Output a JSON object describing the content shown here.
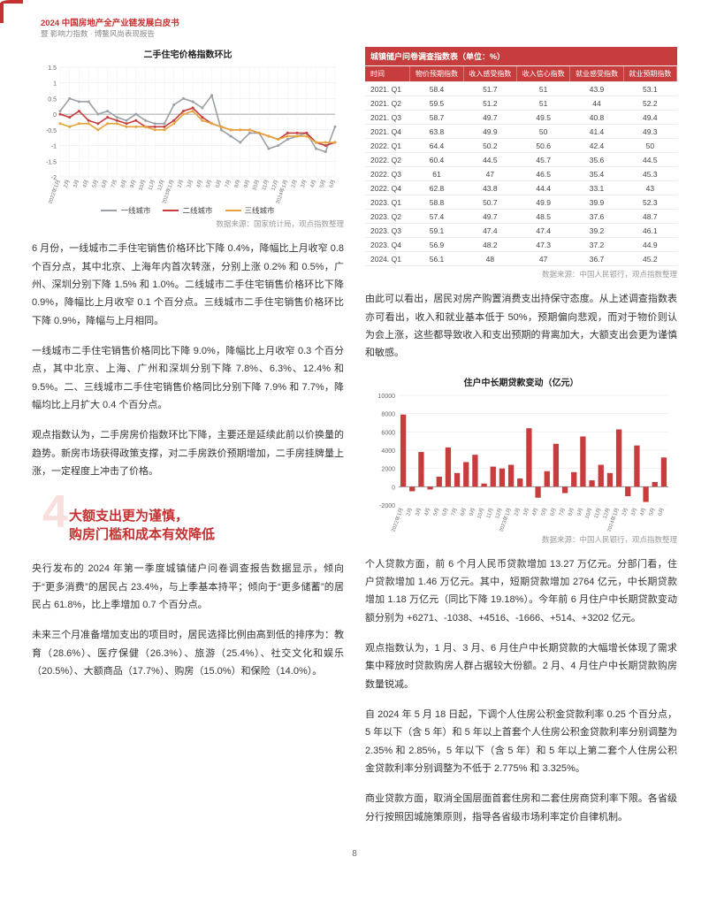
{
  "header": {
    "main": "2024 中国房地产全产业链发展白皮书",
    "sub": "暨 影响力指数 · 博鳌风尚表现报告"
  },
  "page_number": "8",
  "line_chart": {
    "type": "line",
    "title": "二手住宅价格指数环比",
    "ylim": [
      -2,
      1.5
    ],
    "ytick_step": 0.5,
    "yticks": [
      "1.5",
      "1",
      "0.5",
      "0",
      "-0.5",
      "-1",
      "-1.5",
      "-2"
    ],
    "xlabels": [
      "2022年1月",
      "2月",
      "3月",
      "4月",
      "5月",
      "6月",
      "7月",
      "8月",
      "9月",
      "10月",
      "11月",
      "12月",
      "2023年1月",
      "2月",
      "3月",
      "4月",
      "5月",
      "6月",
      "7月",
      "8月",
      "9月",
      "10月",
      "11月",
      "12月",
      "2024年1月",
      "2月",
      "3月",
      "4月",
      "5月",
      "6月"
    ],
    "series": [
      {
        "name": "一线城市",
        "color": "#9aa0a6",
        "values": [
          0.1,
          0.5,
          0.4,
          0.4,
          0.0,
          0.1,
          -0.1,
          -0.2,
          0.0,
          -0.2,
          -0.3,
          -0.3,
          0.3,
          0.5,
          0.4,
          0.2,
          0.6,
          -0.5,
          -0.7,
          -0.9,
          -0.6,
          -0.6,
          -1.1,
          -1.0,
          -0.8,
          -0.7,
          -0.6,
          -1.1,
          -1.2,
          -0.4
        ]
      },
      {
        "name": "二线城市",
        "color": "#c73c3c",
        "values": [
          0.0,
          -0.1,
          0.1,
          -0.2,
          -0.3,
          -0.1,
          -0.2,
          -0.3,
          -0.2,
          -0.4,
          -0.4,
          -0.4,
          -0.2,
          0.1,
          0.2,
          -0.1,
          -0.3,
          -0.4,
          -0.5,
          -0.5,
          -0.5,
          -0.6,
          -0.7,
          -0.8,
          -0.6,
          -0.6,
          -0.6,
          -0.9,
          -1.0,
          -0.9
        ]
      },
      {
        "name": "三线城市",
        "color": "#e8a33a",
        "values": [
          -0.3,
          -0.4,
          -0.3,
          -0.3,
          -0.5,
          -0.3,
          -0.3,
          -0.4,
          -0.4,
          -0.4,
          -0.5,
          -0.5,
          -0.3,
          0.0,
          0.1,
          -0.2,
          -0.3,
          -0.4,
          -0.5,
          -0.5,
          -0.5,
          -0.6,
          -0.7,
          -0.8,
          -0.7,
          -0.7,
          -0.7,
          -0.9,
          -0.9,
          -0.9
        ]
      }
    ],
    "source": "数据来源：国家统计局，观点指数整理",
    "axis_color": "#999",
    "grid_color": "#e5e5e5",
    "label_fontsize": 7
  },
  "survey_table": {
    "title": "城镇储户问卷调查指数表（单位：%）",
    "columns": [
      "时间",
      "物价预期指数",
      "收入感受指数",
      "收入信心指数",
      "就业感受指数",
      "就业预期指数"
    ],
    "rows": [
      [
        "2021. Q1",
        "58.4",
        "51.7",
        "51",
        "43.9",
        "53.1"
      ],
      [
        "2021. Q2",
        "59.5",
        "51.2",
        "51",
        "44",
        "52.2"
      ],
      [
        "2021. Q3",
        "58.7",
        "49.7",
        "49.5",
        "40.8",
        "49.4"
      ],
      [
        "2021. Q4",
        "63.8",
        "49.9",
        "50",
        "41.4",
        "49.3"
      ],
      [
        "2022. Q1",
        "64.4",
        "50.2",
        "50.6",
        "42.4",
        "50"
      ],
      [
        "2022. Q2",
        "60.4",
        "44.5",
        "45.7",
        "35.6",
        "44.5"
      ],
      [
        "2022. Q3",
        "61",
        "47",
        "46.5",
        "35.4",
        "45.3"
      ],
      [
        "2022. Q4",
        "62.8",
        "43.8",
        "44.4",
        "33.1",
        "43"
      ],
      [
        "2023. Q1",
        "58.8",
        "50.7",
        "49.9",
        "39.9",
        "52.3"
      ],
      [
        "2023. Q2",
        "57.4",
        "49.7",
        "48.5",
        "37.6",
        "48.7"
      ],
      [
        "2023. Q3",
        "59.1",
        "47.4",
        "47.4",
        "39.2",
        "46.1"
      ],
      [
        "2023. Q4",
        "56.9",
        "48.2",
        "47.3",
        "37.2",
        "44.9"
      ],
      [
        "2024. Q1",
        "56.1",
        "48",
        "47",
        "36.7",
        "45.2"
      ]
    ],
    "source": "数据来源：中国人民银行，观点指数整理",
    "header_bg": "#c73c3c",
    "header_color": "#ffffff",
    "border_color": "#eeeeee",
    "fontsize": 8.5
  },
  "bar_chart": {
    "type": "bar",
    "title": "住户中长期贷款变动（亿元）",
    "ylim": [
      -2000,
      10000
    ],
    "ytick_step": 2000,
    "yticks": [
      "10000",
      "8000",
      "6000",
      "4000",
      "2000",
      "0",
      "-2000"
    ],
    "xlabels": [
      "2022年1月",
      "2月",
      "3月",
      "4月",
      "5月",
      "6月",
      "7月",
      "8月",
      "9月",
      "10月",
      "11月",
      "12月",
      "2023年1月",
      "2月",
      "3月",
      "4月",
      "5月",
      "6月",
      "7月",
      "8月",
      "9月",
      "10月",
      "11月",
      "12月",
      "2024年1月",
      "2月",
      "3月",
      "4月",
      "5月",
      "6月"
    ],
    "values": [
      7900,
      -500,
      3800,
      -300,
      1100,
      4300,
      1500,
      2700,
      3500,
      350,
      2200,
      2000,
      2400,
      900,
      6400,
      -1200,
      1700,
      4700,
      -700,
      1600,
      5500,
      700,
      2400,
      1500,
      6271,
      -1038,
      4516,
      -1666,
      514,
      3202
    ],
    "bar_color": "#c73c3c",
    "source": "数据来源：中国人民银行，观点指数整理",
    "axis_color": "#999",
    "grid_color": "#e5e5e5",
    "label_fontsize": 7
  },
  "section4": {
    "num": "4",
    "title_l1": "大额支出更为谨慎，",
    "title_l2": "购房门槛和成本有效降低"
  },
  "para": {
    "l1": "6 月份，一线城市二手住宅销售价格环比下降 0.4%，降幅比上月收窄 0.8 个百分点，其中北京、上海年内首次转涨，分别上涨 0.2% 和 0.5%，广州、深圳分别下降 1.5% 和 1.0%。二线城市二手住宅销售价格环比下降 0.9%，降幅比上月收窄 0.1 个百分点。三线城市二手住宅销售价格环比下降 0.9%，降幅与上月相同。",
    "l2": "一线城市二手住宅销售价格同比下降 9.0%，降幅比上月收窄 0.3 个百分点，其中北京、上海、广州和深圳分别下降 7.8%、6.3%、12.4% 和 9.5%。二、三线城市二手住宅销售价格同比分别下降 7.9% 和 7.7%，降幅均比上月扩大 0.4 个百分点。",
    "l3": "观点指数认为，二手房房价指数环比下降，主要还是延续此前以价换量的趋势。新房市场获得政策支撑，对二手房跌价预期增加，二手房挂牌量上涨，一定程度上冲击了价格。",
    "l4": "央行发布的 2024 年第一季度城镇储户问卷调查报告数据显示，倾向于“更多消费”的居民占 23.4%，与上季基本持平；倾向于“更多储蓄”的居民占 61.8%，比上季增加 0.7 个百分点。",
    "l5": "未来三个月准备增加支出的项目时，居民选择比例由高到低的排序为：教育（28.6%）、医疗保健（26.3%）、旅游（25.4%）、社交文化和娱乐（20.5%）、大额商品（17.7%）、购房（15.0%）和保险（14.0%）。",
    "r1": "由此可以看出，居民对房产购置消费支出持保守态度。从上述调查指数表亦可看出，收入和就业基本低于 50%，预期偏向悲观，而对于物价则认为会上涨，这些都导致收入和支出预期的背离加大，大额支出会更为谨慎和敏感。",
    "r2": "个人贷款方面，前 6 个月人民币贷款增加 13.27 万亿元。分部门看，住户贷款增加 1.46 万亿元。其中，短期贷款增加 2764 亿元，中长期贷款增加 1.18 万亿元（同比下降 19.18%）。今年前 6 月住户中长期贷款变动额分别为 +6271、-1038、+4516、-1666、+514、+3202 亿元。",
    "r3": "观点指数认为，1 月、3 月、6 月住户中长期贷款的大幅增长体现了需求集中释放时贷款购房人群占据较大份额。2 月、4 月住户中长期贷款购房数量锐减。",
    "r4": "自 2024 年 5 月 18 日起，下调个人住房公积金贷款利率 0.25 个百分点，5 年以下（含 5 年）和 5 年以上首套个人住房公积金贷款利率分别调整为 2.35% 和 2.85%，5 年以下（含 5 年）和 5 年以上第二套个人住房公积金贷款利率分别调整为不低于 2.775% 和 3.325%。",
    "r5": "商业贷款方面，取消全国层面首套住房和二套住房商贷利率下限。各省级分行按照因城施策原则，指导各省级市场利率定价自律机制。"
  }
}
